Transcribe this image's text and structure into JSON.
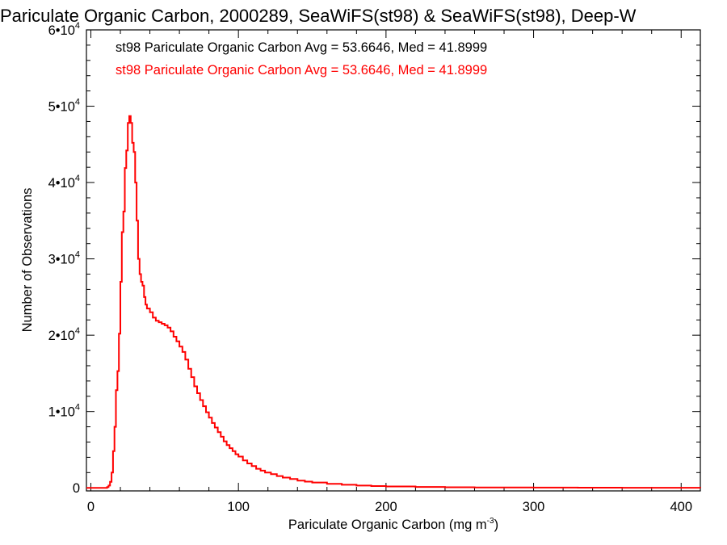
{
  "chart_data": {
    "type": "line",
    "title": "Pariculate Organic Carbon, 2000289, SeaWiFS(st98) & SeaWiFS(st98), Deep-W",
    "xlabel": "Pariculate Organic Carbon (mg m",
    "xlabel_sup": "-3",
    "xlabel_end": ")",
    "ylabel": "Number of Observations",
    "xlim": [
      -3,
      413
    ],
    "ylim": [
      -400,
      60000
    ],
    "x_ticks": [
      {
        "value": 0,
        "label": "0"
      },
      {
        "value": 100,
        "label": "100"
      },
      {
        "value": 200,
        "label": "200"
      },
      {
        "value": 300,
        "label": "300"
      },
      {
        "value": 400,
        "label": "400"
      }
    ],
    "y_ticks": [
      {
        "value": 0,
        "mantissa": "0",
        "exp": ""
      },
      {
        "value": 10000,
        "mantissa": "1•10",
        "exp": "4"
      },
      {
        "value": 20000,
        "mantissa": "2•10",
        "exp": "4"
      },
      {
        "value": 30000,
        "mantissa": "3•10",
        "exp": "4"
      },
      {
        "value": 40000,
        "mantissa": "4•10",
        "exp": "4"
      },
      {
        "value": 50000,
        "mantissa": "5•10",
        "exp": "4"
      },
      {
        "value": 60000,
        "mantissa": "6•10",
        "exp": "4"
      }
    ],
    "annotations": [
      {
        "text": "st98 Pariculate Organic Carbon Avg = 53.6646, Med = 41.8999",
        "color": "#000000"
      },
      {
        "text": "st98 Pariculate Organic Carbon Avg = 53.6646, Med = 41.8999",
        "color": "#ff0000"
      }
    ],
    "series": [
      {
        "color": "#ff0000",
        "points": [
          [
            -3,
            0
          ],
          [
            10,
            0
          ],
          [
            11,
            100
          ],
          [
            12,
            300
          ],
          [
            13,
            800
          ],
          [
            14,
            2000
          ],
          [
            15,
            4800
          ],
          [
            16,
            8000
          ],
          [
            17,
            12800
          ],
          [
            18,
            15300
          ],
          [
            19,
            20200
          ],
          [
            20,
            27000
          ],
          [
            21,
            33500
          ],
          [
            22,
            36200
          ],
          [
            23,
            41900
          ],
          [
            24,
            44200
          ],
          [
            25,
            47800
          ],
          [
            26,
            48700
          ],
          [
            27,
            47800
          ],
          [
            28,
            45200
          ],
          [
            29,
            44000
          ],
          [
            30,
            40000
          ],
          [
            31,
            35000
          ],
          [
            32,
            30000
          ],
          [
            33,
            28000
          ],
          [
            34,
            27000
          ],
          [
            35,
            26500
          ],
          [
            36,
            25000
          ],
          [
            37,
            24000
          ],
          [
            38,
            23500
          ],
          [
            40,
            23000
          ],
          [
            42,
            22300
          ],
          [
            44,
            21900
          ],
          [
            46,
            21700
          ],
          [
            48,
            21500
          ],
          [
            50,
            21300
          ],
          [
            52,
            21000
          ],
          [
            54,
            20500
          ],
          [
            56,
            19800
          ],
          [
            58,
            19200
          ],
          [
            60,
            18500
          ],
          [
            62,
            17800
          ],
          [
            64,
            16800
          ],
          [
            66,
            15600
          ],
          [
            68,
            14500
          ],
          [
            70,
            13300
          ],
          [
            72,
            12400
          ],
          [
            74,
            11500
          ],
          [
            76,
            10700
          ],
          [
            78,
            9900
          ],
          [
            80,
            9200
          ],
          [
            82,
            8500
          ],
          [
            84,
            7900
          ],
          [
            86,
            7300
          ],
          [
            88,
            6700
          ],
          [
            90,
            6100
          ],
          [
            92,
            5600
          ],
          [
            94,
            5200
          ],
          [
            96,
            4800
          ],
          [
            98,
            4400
          ],
          [
            100,
            4100
          ],
          [
            103,
            3600
          ],
          [
            106,
            3200
          ],
          [
            109,
            2850
          ],
          [
            112,
            2500
          ],
          [
            115,
            2250
          ],
          [
            118,
            2000
          ],
          [
            122,
            1800
          ],
          [
            126,
            1550
          ],
          [
            130,
            1350
          ],
          [
            135,
            1150
          ],
          [
            140,
            950
          ],
          [
            145,
            820
          ],
          [
            150,
            700
          ],
          [
            160,
            520
          ],
          [
            170,
            400
          ],
          [
            180,
            300
          ],
          [
            190,
            230
          ],
          [
            200,
            180
          ],
          [
            220,
            120
          ],
          [
            240,
            80
          ],
          [
            260,
            55
          ],
          [
            280,
            40
          ],
          [
            300,
            30
          ],
          [
            330,
            20
          ],
          [
            360,
            12
          ],
          [
            390,
            8
          ],
          [
            413,
            5
          ]
        ]
      }
    ]
  }
}
